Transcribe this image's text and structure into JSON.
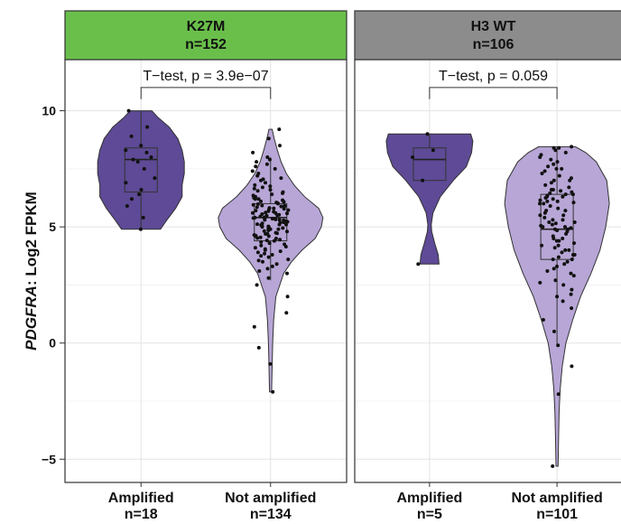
{
  "chart_data": {
    "type": "violin",
    "ylabel_gene": "PDGFRA",
    "ylabel_suffix": ": Log2 FPKM",
    "ylim": [
      -6.0,
      12.2
    ],
    "yticks": [
      -5,
      0,
      5,
      10
    ],
    "grid": true,
    "colors": {
      "amplified": "#5e4a96",
      "not_amplified": "#b7a6d6",
      "strip_k27m": "#6abf4b",
      "strip_wt": "#8c8c8c"
    },
    "panels": [
      {
        "strip_title": "K27M",
        "strip_n": "n=152",
        "test_label": "T−test, p = 3.9e−07",
        "groups": [
          {
            "name": "Amplified",
            "n_label": "n=18",
            "fill": "#5e4a96",
            "box": {
              "q1": 6.5,
              "median": 7.9,
              "q3": 8.4,
              "whisker_low": 4.9,
              "whisker_high": 10.0
            },
            "violin": [
              [
                4.9,
                0.45
              ],
              [
                5.3,
                0.6
              ],
              [
                5.8,
                0.8
              ],
              [
                6.3,
                0.95
              ],
              [
                6.8,
                0.95
              ],
              [
                7.3,
                1.0
              ],
              [
                7.8,
                1.0
              ],
              [
                8.3,
                0.95
              ],
              [
                8.8,
                0.85
              ],
              [
                9.3,
                0.65
              ],
              [
                9.7,
                0.4
              ],
              [
                10.0,
                0.25
              ]
            ],
            "points": [
              4.9,
              5.4,
              5.9,
              6.2,
              6.4,
              6.6,
              6.9,
              7.1,
              7.5,
              7.8,
              7.9,
              8.0,
              8.2,
              8.3,
              8.5,
              8.9,
              9.3,
              10.0
            ]
          },
          {
            "name": "Not amplified",
            "n_label": "n=134",
            "fill": "#b7a6d6",
            "box": {
              "q1": 4.4,
              "median": 5.4,
              "q3": 6.0,
              "whisker_low": 2.7,
              "whisker_high": 8.0
            },
            "violin": [
              [
                -2.1,
                0.02
              ],
              [
                -1.0,
                0.03
              ],
              [
                0.0,
                0.04
              ],
              [
                1.0,
                0.06
              ],
              [
                2.0,
                0.1
              ],
              [
                3.0,
                0.25
              ],
              [
                3.5,
                0.4
              ],
              [
                4.0,
                0.6
              ],
              [
                4.5,
                0.85
              ],
              [
                5.0,
                0.97
              ],
              [
                5.4,
                1.0
              ],
              [
                5.8,
                0.92
              ],
              [
                6.3,
                0.65
              ],
              [
                6.8,
                0.45
              ],
              [
                7.3,
                0.3
              ],
              [
                7.8,
                0.2
              ],
              [
                8.3,
                0.13
              ],
              [
                8.8,
                0.07
              ],
              [
                9.2,
                0.03
              ]
            ],
            "points": [
              -2.1,
              -0.9,
              -0.2,
              0.7,
              1.3,
              2.0,
              2.5,
              2.8,
              3.0,
              3.1,
              3.2,
              3.3,
              3.4,
              3.5,
              3.55,
              3.6,
              3.7,
              3.75,
              3.8,
              3.85,
              3.9,
              3.95,
              4.0,
              4.05,
              4.1,
              4.15,
              4.2,
              4.25,
              4.3,
              4.35,
              4.4,
              4.42,
              4.45,
              4.5,
              4.52,
              4.55,
              4.6,
              4.62,
              4.65,
              4.7,
              4.72,
              4.75,
              4.8,
              4.82,
              4.85,
              4.9,
              4.92,
              4.95,
              5.0,
              5.02,
              5.05,
              5.08,
              5.1,
              5.12,
              5.15,
              5.18,
              5.2,
              5.22,
              5.25,
              5.28,
              5.3,
              5.32,
              5.35,
              5.38,
              5.4,
              5.42,
              5.45,
              5.48,
              5.5,
              5.52,
              5.55,
              5.58,
              5.6,
              5.62,
              5.65,
              5.68,
              5.7,
              5.72,
              5.75,
              5.78,
              5.8,
              5.82,
              5.85,
              5.88,
              5.9,
              5.92,
              5.95,
              5.98,
              6.0,
              6.02,
              6.05,
              6.08,
              6.1,
              6.15,
              6.2,
              6.25,
              6.3,
              6.35,
              6.4,
              6.45,
              6.5,
              6.55,
              6.6,
              6.65,
              6.7,
              6.75,
              6.8,
              6.9,
              7.0,
              7.05,
              7.1,
              7.2,
              7.3,
              7.4,
              7.5,
              7.6,
              7.7,
              7.8,
              7.9,
              8.0,
              8.2,
              8.5,
              8.8,
              9.2,
              5.3,
              5.1,
              4.9,
              5.6,
              5.0,
              4.7,
              6.2,
              5.9,
              4.6,
              5.4
            ]
          }
        ]
      },
      {
        "strip_title": "H3 WT",
        "strip_n": "n=106",
        "test_label": "T−test, p = 0.059",
        "groups": [
          {
            "name": "Amplified",
            "n_label": "n=5",
            "fill": "#5e4a96",
            "box": {
              "q1": 7.0,
              "median": 7.9,
              "q3": 8.4,
              "whisker_low": 7.0,
              "whisker_high": 9.0
            },
            "violin": [
              [
                3.4,
                0.22
              ],
              [
                3.8,
                0.2
              ],
              [
                4.3,
                0.12
              ],
              [
                4.8,
                0.05
              ],
              [
                5.1,
                0.04
              ],
              [
                5.6,
                0.08
              ],
              [
                6.3,
                0.25
              ],
              [
                7.0,
                0.55
              ],
              [
                7.6,
                0.85
              ],
              [
                8.2,
                0.97
              ],
              [
                8.7,
                1.0
              ],
              [
                9.0,
                0.95
              ]
            ],
            "points": [
              3.4,
              7.0,
              8.0,
              8.3,
              9.0
            ]
          },
          {
            "name": "Not amplified",
            "n_label": "n=101",
            "fill": "#b7a6d6",
            "box": {
              "q1": 3.6,
              "median": 4.9,
              "q3": 6.4,
              "whisker_low": -0.1,
              "whisker_high": 8.4
            },
            "violin": [
              [
                -5.3,
                0.02
              ],
              [
                -4.0,
                0.03
              ],
              [
                -3.0,
                0.04
              ],
              [
                -2.0,
                0.06
              ],
              [
                -1.0,
                0.1
              ],
              [
                0.0,
                0.17
              ],
              [
                1.0,
                0.3
              ],
              [
                2.0,
                0.45
              ],
              [
                3.0,
                0.65
              ],
              [
                4.0,
                0.82
              ],
              [
                5.0,
                0.93
              ],
              [
                6.0,
                1.0
              ],
              [
                7.0,
                0.95
              ],
              [
                7.8,
                0.75
              ],
              [
                8.2,
                0.55
              ],
              [
                8.45,
                0.35
              ]
            ],
            "points": [
              -5.3,
              -2.2,
              -1.0,
              -0.1,
              0.5,
              1.0,
              1.5,
              1.8,
              2.0,
              2.3,
              2.5,
              2.7,
              2.9,
              3.0,
              3.2,
              3.3,
              3.4,
              3.5,
              3.6,
              3.7,
              3.8,
              3.9,
              4.0,
              4.1,
              4.2,
              4.3,
              4.4,
              4.5,
              4.6,
              4.7,
              4.8,
              4.85,
              4.9,
              4.95,
              5.0,
              5.05,
              5.1,
              5.15,
              5.2,
              5.3,
              5.4,
              5.5,
              5.6,
              5.7,
              5.8,
              5.9,
              6.0,
              6.05,
              6.1,
              6.15,
              6.2,
              6.25,
              6.3,
              6.35,
              6.4,
              6.45,
              6.5,
              6.55,
              6.6,
              6.7,
              6.8,
              6.9,
              7.0,
              7.1,
              7.2,
              7.3,
              7.4,
              7.5,
              7.6,
              7.7,
              7.8,
              7.9,
              8.0,
              8.1,
              8.2,
              8.3,
              8.4,
              8.45,
              5.0,
              4.5,
              6.3,
              3.6,
              5.5,
              6.0,
              4.0,
              7.0,
              2.6,
              4.2,
              5.2,
              6.6,
              3.1,
              5.7,
              4.4,
              6.1,
              7.5,
              2.1,
              3.8,
              5.3,
              6.4,
              4.9,
              8.4
            ]
          }
        ]
      }
    ]
  }
}
